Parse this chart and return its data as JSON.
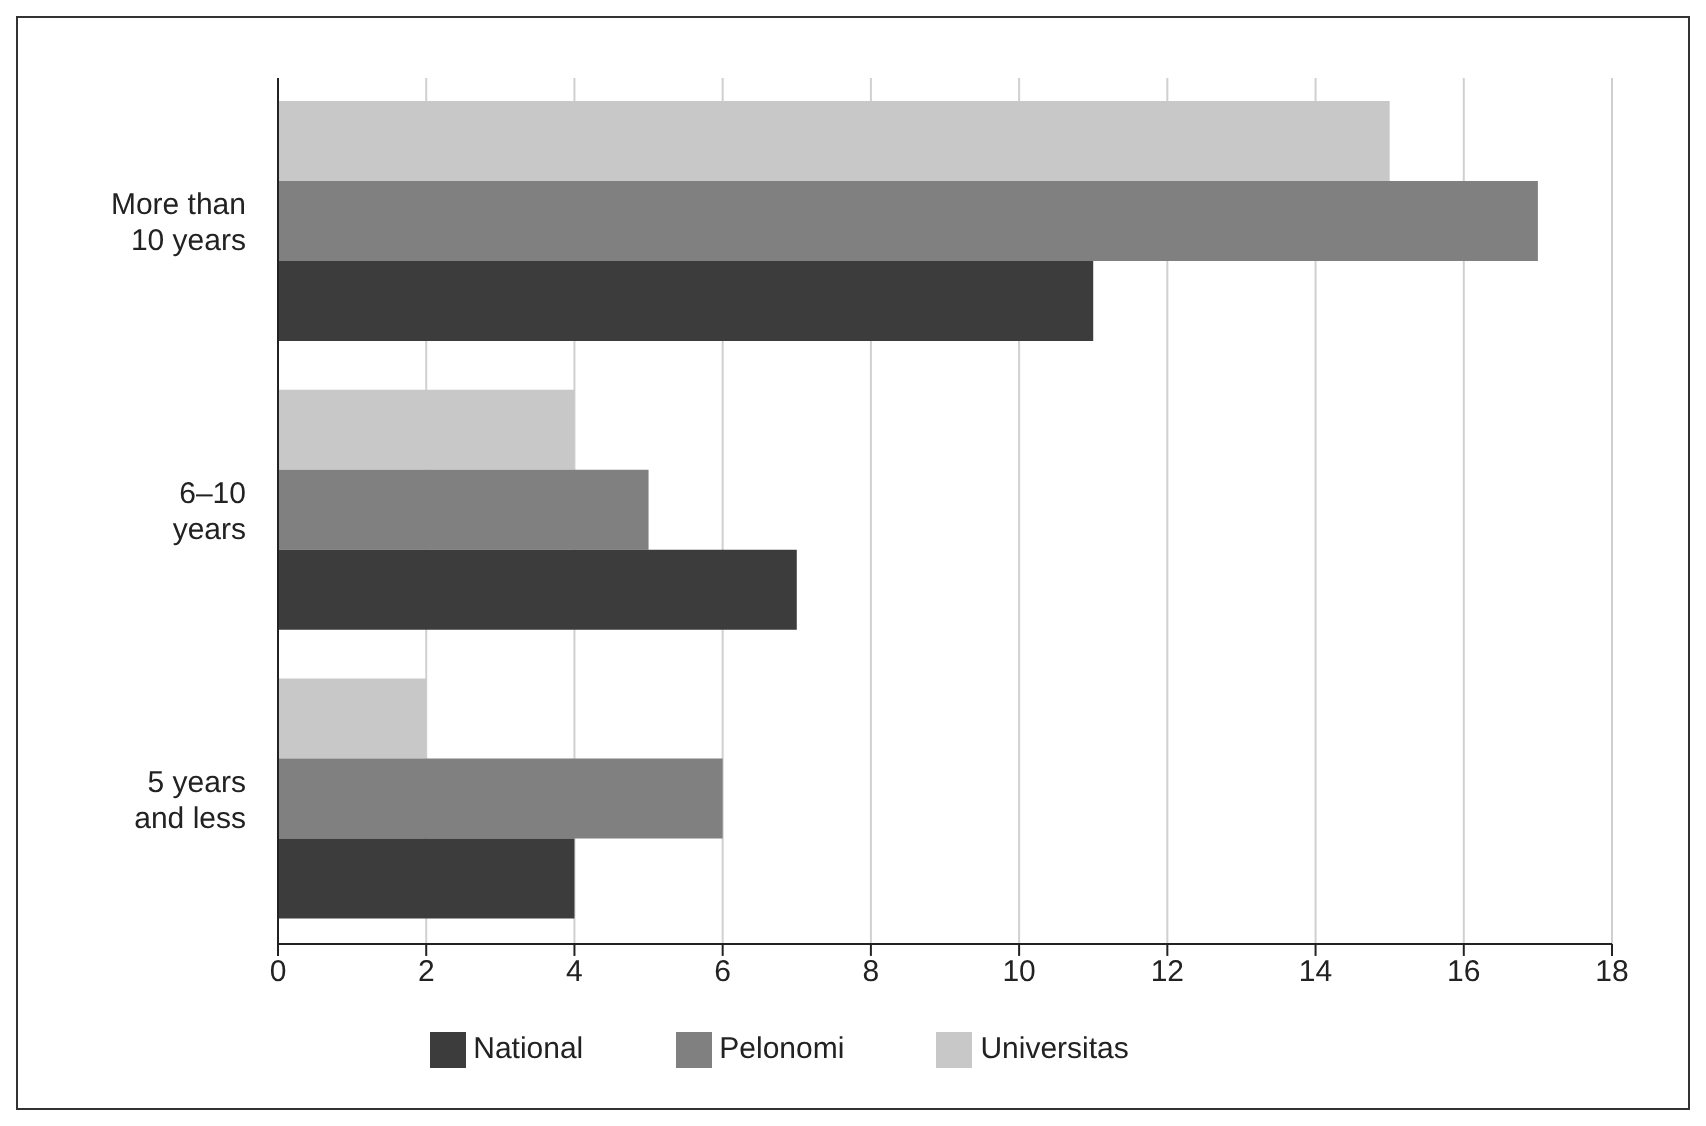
{
  "chart_data": {
    "type": "bar",
    "orientation": "horizontal",
    "categories": [
      "More than 10 years",
      "6–10 years",
      "5 years and less"
    ],
    "series": [
      {
        "name": "Universitas",
        "color": "#c8c8c8",
        "values": [
          15,
          4,
          2
        ]
      },
      {
        "name": "Pelonomi",
        "color": "#808080",
        "values": [
          17,
          5,
          6
        ]
      },
      {
        "name": "National",
        "color": "#3c3c3c",
        "values": [
          11,
          7,
          4
        ]
      }
    ],
    "xlim": [
      0,
      18
    ],
    "xticks": [
      0,
      2,
      4,
      6,
      8,
      10,
      12,
      14,
      16,
      18
    ],
    "grid": "x",
    "legend": "bottom"
  }
}
